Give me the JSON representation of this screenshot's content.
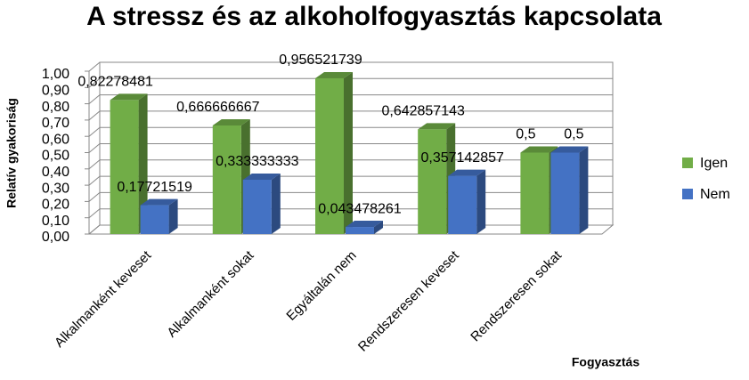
{
  "chart_data": {
    "type": "bar3d",
    "title": "A stressz és az alkoholfogyasztás kapcsolata",
    "x_label": "Fogyasztás",
    "y_label": "Relatív gyakoriság",
    "categories": [
      "Alkalmanként keveset",
      "Alkalmanként sokat",
      "Egyáltalán nem",
      "Rendszeresen  keveset",
      "Rendszeresen sokat"
    ],
    "series": [
      {
        "name": "Igen",
        "color": "#71ad47",
        "values": [
          0.82278481,
          0.666666667,
          0.956521739,
          0.642857143,
          0.5
        ],
        "value_labels": [
          "0,82278481",
          "0,666666667",
          "0,956521739",
          "0,642857143",
          "0,5"
        ]
      },
      {
        "name": "Nem",
        "color": "#4472c4",
        "values": [
          0.17721519,
          0.333333333,
          0.043478261,
          0.357142857,
          0.5
        ],
        "value_labels": [
          "0,17721519",
          "0,333333333",
          "0,043478261",
          "0,357142857",
          "0,5"
        ]
      }
    ],
    "ylim": [
      0,
      1
    ],
    "yticks": [
      {
        "value": 0,
        "label": "0,00"
      },
      {
        "value": 0.1,
        "label": "0,10"
      },
      {
        "value": 0.2,
        "label": "0,20"
      },
      {
        "value": 0.3,
        "label": "0,30"
      },
      {
        "value": 0.4,
        "label": "0,40"
      },
      {
        "value": 0.5,
        "label": "0,50"
      },
      {
        "value": 0.6,
        "label": "0,60"
      },
      {
        "value": 0.7,
        "label": "0,70"
      },
      {
        "value": 0.8,
        "label": "0,80"
      },
      {
        "value": 0.9,
        "label": "0,90"
      },
      {
        "value": 1,
        "label": "1,00"
      }
    ],
    "grid": true,
    "legend": "right"
  }
}
